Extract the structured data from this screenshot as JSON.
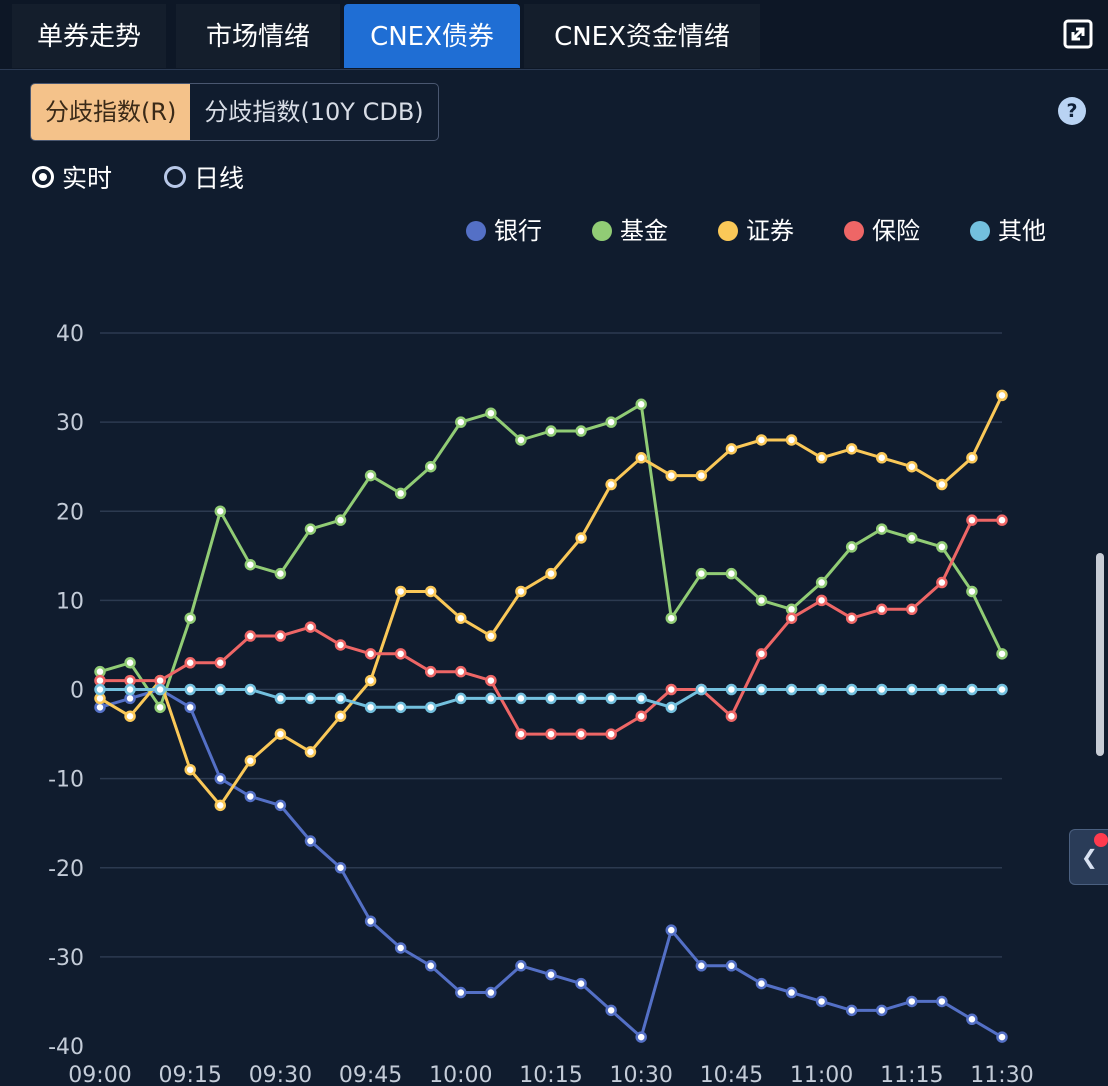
{
  "tabs": [
    {
      "label": "单券走势",
      "active": false
    },
    {
      "label": "市场情绪",
      "active": false
    },
    {
      "label": "CNEX债券",
      "active": true
    },
    {
      "label": "CNEX资金情绪",
      "active": false
    }
  ],
  "segments": [
    {
      "label": "分歧指数(R)",
      "active": true
    },
    {
      "label": "分歧指数(10Y CDB)",
      "active": false
    }
  ],
  "help_label": "?",
  "radios": [
    {
      "label": "实时",
      "checked": true
    },
    {
      "label": "日线",
      "checked": false
    }
  ],
  "colors": {
    "background": "#101c2e",
    "active_tab": "#1f6ed4",
    "active_segment": "#f4c28a",
    "grid": "#2c3a50",
    "axis_text": "#c4ccd8"
  },
  "icons": {
    "expand": "expand-icon",
    "help": "help-icon",
    "collapse_arrow": "chevron-left-icon"
  },
  "chart_data": {
    "type": "line",
    "title": "",
    "xlabel": "",
    "ylabel": "",
    "ylim": [
      -40,
      40
    ],
    "yticks": [
      -40,
      -30,
      -20,
      -10,
      0,
      10,
      20,
      30,
      40
    ],
    "x_ticks": [
      "09:00",
      "09:15",
      "09:30",
      "09:45",
      "10:00",
      "10:15",
      "10:30",
      "10:45",
      "11:00",
      "11:15",
      "11:30"
    ],
    "x": [
      "09:00",
      "09:05",
      "09:10",
      "09:15",
      "09:20",
      "09:25",
      "09:30",
      "09:35",
      "09:40",
      "09:45",
      "09:50",
      "09:55",
      "10:00",
      "10:05",
      "10:10",
      "10:15",
      "10:20",
      "10:25",
      "10:30",
      "10:35",
      "10:40",
      "10:45",
      "10:50",
      "10:55",
      "11:00",
      "11:05",
      "11:10",
      "11:15",
      "11:20",
      "11:25",
      "11:30"
    ],
    "grid": true,
    "legend": "top-right",
    "series": [
      {
        "name": "银行",
        "color": "#5470c6",
        "values": [
          -2,
          -1,
          0,
          -2,
          -10,
          -12,
          -13,
          -17,
          -20,
          -26,
          -29,
          -31,
          -34,
          -34,
          -31,
          -32,
          -33,
          -36,
          -39,
          -27,
          -31,
          -31,
          -33,
          -34,
          -35,
          -36,
          -36,
          -35,
          -35,
          -37,
          -39
        ]
      },
      {
        "name": "基金",
        "color": "#91cc75",
        "values": [
          2,
          3,
          -2,
          8,
          20,
          14,
          13,
          18,
          19,
          24,
          22,
          25,
          30,
          31,
          28,
          29,
          29,
          30,
          32,
          8,
          13,
          13,
          10,
          9,
          12,
          16,
          18,
          17,
          16,
          11,
          4
        ]
      },
      {
        "name": "证券",
        "color": "#fac858",
        "values": [
          -1,
          -3,
          1,
          -9,
          -13,
          -8,
          -5,
          -7,
          -3,
          1,
          11,
          11,
          8,
          6,
          11,
          13,
          17,
          23,
          26,
          24,
          24,
          27,
          28,
          28,
          26,
          27,
          26,
          25,
          23,
          26,
          33
        ]
      },
      {
        "name": "保险",
        "color": "#ee6666",
        "values": [
          1,
          1,
          1,
          3,
          3,
          6,
          6,
          7,
          5,
          4,
          4,
          2,
          2,
          1,
          -5,
          -5,
          -5,
          -5,
          -3,
          0,
          0,
          -3,
          4,
          8,
          10,
          8,
          9,
          9,
          12,
          19,
          19
        ]
      },
      {
        "name": "其他",
        "color": "#73c0de",
        "values": [
          0,
          0,
          0,
          0,
          0,
          0,
          -1,
          -1,
          -1,
          -2,
          -2,
          -2,
          -1,
          -1,
          -1,
          -1,
          -1,
          -1,
          -1,
          -2,
          0,
          0,
          0,
          0,
          0,
          0,
          0,
          0,
          0,
          0,
          0
        ]
      }
    ]
  }
}
